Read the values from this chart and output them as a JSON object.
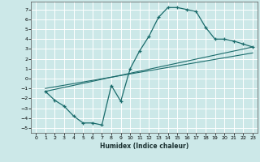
{
  "title": "",
  "xlabel": "Humidex (Indice chaleur)",
  "bg_color": "#cce8e8",
  "grid_color": "#ffffff",
  "line_color": "#1a6b6b",
  "xlim": [
    -0.5,
    23.5
  ],
  "ylim": [
    -5.5,
    7.8
  ],
  "xticks": [
    0,
    1,
    2,
    3,
    4,
    5,
    6,
    7,
    8,
    9,
    10,
    11,
    12,
    13,
    14,
    15,
    16,
    17,
    18,
    19,
    20,
    21,
    22,
    23
  ],
  "yticks": [
    -5,
    -4,
    -3,
    -2,
    -1,
    0,
    1,
    2,
    3,
    4,
    5,
    6,
    7
  ],
  "curve1_x": [
    1,
    2,
    3,
    4,
    5,
    6,
    7,
    8,
    9,
    10,
    11,
    12,
    13,
    14,
    15,
    16,
    17,
    18,
    19,
    20,
    21,
    22,
    23
  ],
  "curve1_y": [
    -1.3,
    -2.2,
    -2.8,
    -3.8,
    -4.5,
    -4.5,
    -4.7,
    -0.7,
    -2.3,
    1.0,
    2.8,
    4.3,
    6.2,
    7.2,
    7.2,
    7.0,
    6.8,
    5.2,
    4.0,
    4.0,
    3.8,
    3.5,
    3.2
  ],
  "curve2_x": [
    1,
    23
  ],
  "curve2_y": [
    -1.3,
    3.2
  ],
  "curve3_x": [
    1,
    23
  ],
  "curve3_y": [
    -1.0,
    2.6
  ]
}
